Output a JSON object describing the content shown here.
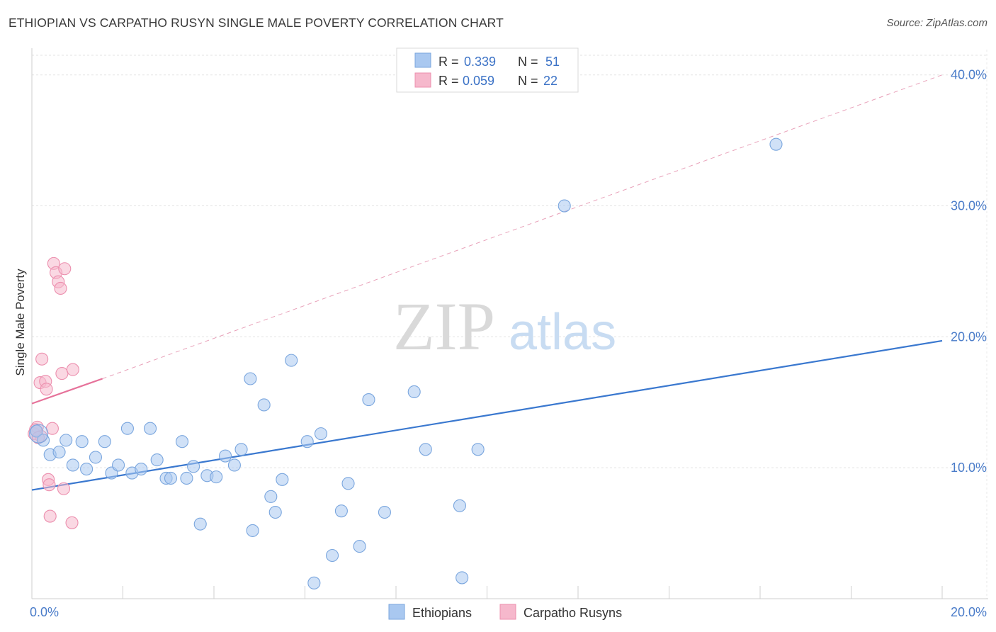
{
  "header": {
    "title": "ETHIOPIAN VS CARPATHO RUSYN SINGLE MALE POVERTY CORRELATION CHART",
    "source": "Source: ZipAtlas.com"
  },
  "chart_data": {
    "type": "scatter",
    "title": "ETHIOPIAN VS CARPATHO RUSYN SINGLE MALE POVERTY CORRELATION CHART",
    "xlabel": "",
    "ylabel": "Single Male Poverty",
    "xlim": [
      0,
      20
    ],
    "ylim": [
      0,
      41.5
    ],
    "x_ticks": [
      0,
      20
    ],
    "x_tick_labels": [
      "0.0%",
      "20.0%"
    ],
    "y_ticks": [
      10,
      20,
      30,
      40
    ],
    "y_tick_labels": [
      "10.0%",
      "20.0%",
      "30.0%",
      "40.0%"
    ],
    "grid": true,
    "watermark": {
      "part1": "ZIP",
      "part2": "atlas"
    },
    "legend": {
      "entries": [
        {
          "r_label": "R = ",
          "r_value": "0.339",
          "n_label": "N = ",
          "n_value": "51",
          "color": "#a9c8f0"
        },
        {
          "r_label": "R = ",
          "r_value": "0.059",
          "n_label": "N = ",
          "n_value": "22",
          "color": "#f6b8cc"
        }
      ]
    },
    "bottom_legend": [
      "Ethiopians",
      "Carpatho Rusyns"
    ],
    "series": [
      {
        "name": "Ethiopians",
        "color": "#a9c8f0",
        "edge": "#7aa6de",
        "trend": {
          "x": [
            0,
            20
          ],
          "y": [
            8.3,
            19.7
          ],
          "color": "#3a78cf",
          "dashed": false
        },
        "points": [
          [
            0.1,
            12.8
          ],
          [
            0.25,
            12.1
          ],
          [
            0.4,
            11.0
          ],
          [
            0.6,
            11.2
          ],
          [
            0.75,
            12.1
          ],
          [
            0.9,
            10.2
          ],
          [
            1.1,
            12.0
          ],
          [
            1.2,
            9.9
          ],
          [
            1.4,
            10.8
          ],
          [
            1.6,
            12.0
          ],
          [
            1.75,
            9.6
          ],
          [
            1.9,
            10.2
          ],
          [
            2.1,
            13.0
          ],
          [
            2.2,
            9.6
          ],
          [
            2.4,
            9.9
          ],
          [
            2.6,
            13.0
          ],
          [
            2.75,
            10.6
          ],
          [
            2.95,
            9.2
          ],
          [
            3.05,
            9.2
          ],
          [
            3.3,
            12.0
          ],
          [
            3.4,
            9.2
          ],
          [
            3.55,
            10.1
          ],
          [
            3.7,
            5.7
          ],
          [
            3.85,
            9.4
          ],
          [
            4.05,
            9.3
          ],
          [
            4.25,
            10.9
          ],
          [
            4.45,
            10.2
          ],
          [
            4.6,
            11.4
          ],
          [
            4.8,
            16.8
          ],
          [
            4.85,
            5.2
          ],
          [
            5.1,
            14.8
          ],
          [
            5.25,
            7.8
          ],
          [
            5.35,
            6.6
          ],
          [
            5.5,
            9.1
          ],
          [
            5.7,
            18.2
          ],
          [
            6.05,
            12.0
          ],
          [
            6.2,
            1.2
          ],
          [
            6.35,
            12.6
          ],
          [
            6.6,
            3.3
          ],
          [
            6.8,
            6.7
          ],
          [
            6.95,
            8.8
          ],
          [
            7.2,
            4.0
          ],
          [
            7.4,
            15.2
          ],
          [
            7.75,
            6.6
          ],
          [
            8.4,
            15.8
          ],
          [
            8.65,
            11.4
          ],
          [
            9.4,
            7.1
          ],
          [
            9.45,
            1.6
          ],
          [
            9.8,
            11.4
          ],
          [
            11.7,
            30.0
          ],
          [
            16.35,
            34.7
          ]
        ]
      },
      {
        "name": "Carpatho Rusyns",
        "color": "#f6b8cc",
        "edge": "#ec8fae",
        "trend": {
          "x": [
            0,
            1.55
          ],
          "y": [
            14.9,
            16.8
          ],
          "color": "#e6729a",
          "dashed": false
        },
        "trend_extension": {
          "x": [
            1.55,
            20
          ],
          "y": [
            16.8,
            40.0
          ],
          "color": "#e38aa8",
          "dashed": true
        },
        "points": [
          [
            0.05,
            12.6
          ],
          [
            0.12,
            13.1
          ],
          [
            0.2,
            12.4
          ],
          [
            0.18,
            16.5
          ],
          [
            0.22,
            18.3
          ],
          [
            0.3,
            16.6
          ],
          [
            0.32,
            16.0
          ],
          [
            0.36,
            9.1
          ],
          [
            0.38,
            8.7
          ],
          [
            0.4,
            6.3
          ],
          [
            0.45,
            13.0
          ],
          [
            0.48,
            25.6
          ],
          [
            0.53,
            24.9
          ],
          [
            0.58,
            24.2
          ],
          [
            0.63,
            23.7
          ],
          [
            0.66,
            17.2
          ],
          [
            0.7,
            8.4
          ],
          [
            0.72,
            25.2
          ],
          [
            0.88,
            5.8
          ],
          [
            0.9,
            17.5
          ],
          [
            0.08,
            12.9
          ],
          [
            0.14,
            12.3
          ]
        ]
      }
    ]
  }
}
